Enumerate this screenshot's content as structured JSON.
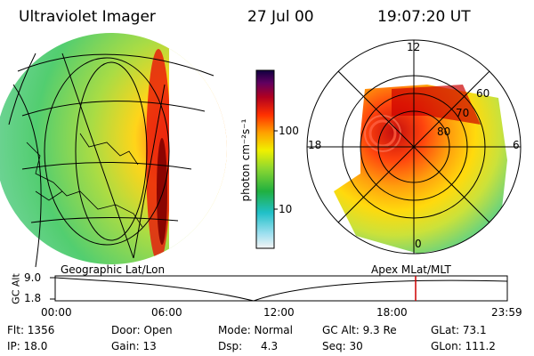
{
  "header": {
    "instrument": "Ultraviolet Imager",
    "date": "27 Jul 00",
    "time": "19:07:20 UT"
  },
  "colorbar": {
    "unit_label": "photon cm⁻²s⁻¹",
    "ticks": [
      "100",
      "10"
    ]
  },
  "polar_plot": {
    "mlt_labels": [
      "12",
      "18",
      "6",
      "0"
    ],
    "lat_labels": [
      "60",
      "70",
      "80"
    ]
  },
  "panel_labels": {
    "left": "Geographic Lat/Lon",
    "right": "Apex MLat/MLT"
  },
  "orbit_plot": {
    "ylabel": "GC Alt",
    "y_ticks": [
      "9.0",
      "1.8"
    ],
    "x_ticks": [
      "00:00",
      "06:00",
      "12:00",
      "18:00",
      "23:59"
    ],
    "marker_time": "19:07:20"
  },
  "status": {
    "flt": "Flt: 1356",
    "ip": "IP: 18.0",
    "door": "Door: Open",
    "gain": "Gain: 13",
    "mode": "Mode: Normal",
    "dsp_label": "Dsp:",
    "dsp_value": "4.3",
    "gc_alt": "GC Alt: 9.3 Re",
    "seq": "Seq: 30",
    "glat": "GLat: 73.1",
    "glon": "GLon: 111.2"
  },
  "colors": {
    "marker": "#cc0000",
    "background": "#ffffff"
  }
}
